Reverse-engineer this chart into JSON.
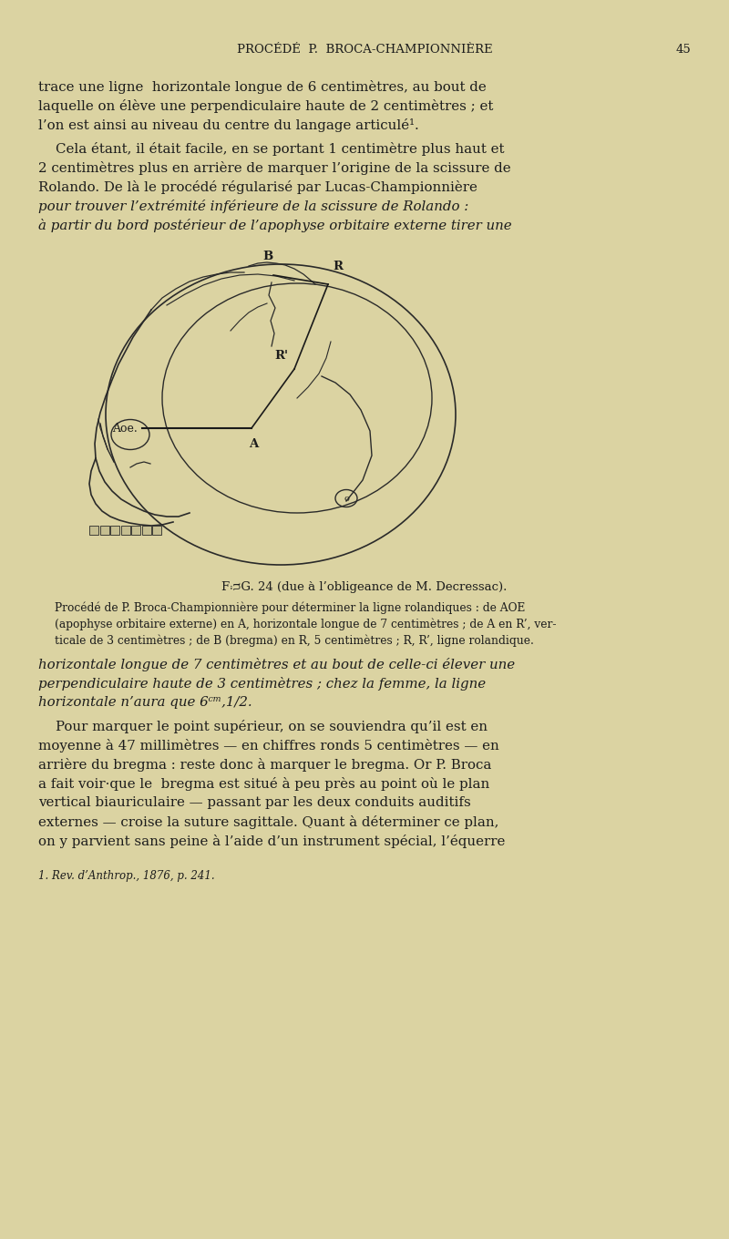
{
  "bg_color": "#dbd3a2",
  "text_color": "#1c1c1c",
  "header": "PROCÉDÉ  P.  BROCA-CHAMPIONNIÈRE",
  "page_number": "45",
  "para1_lines": [
    "trace une ligne  horizontale longue de 6 centimètres, au bout de",
    "laquelle on élève une perpendiculaire haute de 2 centimètres ; et",
    "l’on est ainsi au niveau du centre du langage articulé¹."
  ],
  "para2_normal": [
    "    Cela étant, il était facile, en se portant 1 centimètre plus haut et",
    "2 centimètres plus en arrière de marquer l’origine de la scissure de",
    "Rolando. De là le procédé régularisé par Lucas-Championnière"
  ],
  "para2_italic": [
    "pour trouver l’extrémité inférieure de la scissure de Rolando :",
    "à partir du bord postérieur de l’apophyse orbitaire externe tirer une"
  ],
  "fig_caption_title": "FᴞG. 24 (due à l’obligeance de M. Decressac).",
  "fig_caption_lines": [
    "Procédé de P. Broca-Championnière pour déterminer la ligne rolandiques : de AOE",
    "(apophyse orbitaire externe) en A, horizontale longue de 7 centimètres ; de A en R’, ver-",
    "ticale de 3 centimètres ; de B (bregma) en R, 5 centimètres ; R, R’, ligne rolandique."
  ],
  "para3_italic": [
    "horizontale longue de 7 centimètres et au bout de celle-ci élever une",
    "perpendiculaire haute de 3 centimètres ; chez la femme, la ligne",
    "horizontale n’aura que 6ᶜᵐ,1/2."
  ],
  "para4_lines": [
    "    Pour marquer le point supérieur, on se souviendra qu’il est en",
    "moyenne à 47 millimètres — en chiffres ronds 5 centimètres — en",
    "arrière du bregma : reste donc à marquer le bregma. Or P. Broca",
    "a fait voir·que le  bregma est situé à peu près au point où le plan",
    "vertical biauriculaire — passant par les deux conduits auditifs",
    "externes — croise la suture sagittale. Quant à déterminer ce plan,",
    "on y parvient sans peine à l’aide d’un instrument spécial, l’équerre"
  ],
  "footnote": "1. Rev. d’Anthrop., 1876, p. 241."
}
